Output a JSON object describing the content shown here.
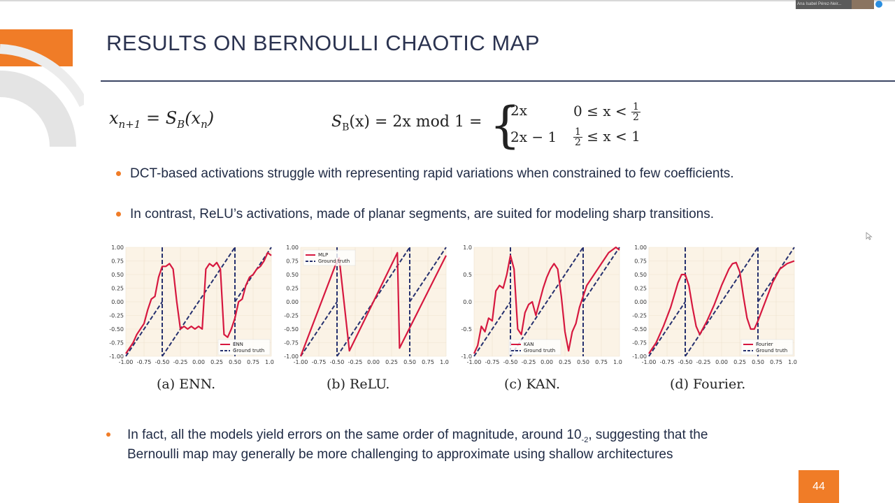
{
  "slide": {
    "title": "RESULTS ON BERNOULLI CHAOTIC MAP",
    "page_number": "44",
    "colors": {
      "accent": "#f07c27",
      "title": "#2b3350",
      "model": "#d6183f",
      "truth": "#25306e"
    }
  },
  "video": {
    "participant_name": "Ana Isabel Pérez-Neir..."
  },
  "equations": {
    "left": {
      "lhs": "x",
      "lhs_sub": "n+1",
      "eq": " = ",
      "rhs": "S",
      "rhs_sub": "B",
      "arg": "(x",
      "arg_sub": "n",
      "close": ")"
    },
    "right": {
      "lhs": "S",
      "lhs_sub": "B",
      "rhs": "(x) = 2x mod 1 =",
      "case1_expr": "2x",
      "case1_cond_pre": "0 ≤ x <",
      "case2_expr": "2x − 1",
      "case2_cond_post": "≤ x < 1",
      "frac_num": "1",
      "frac_den": "2"
    }
  },
  "bullets": [
    "DCT-based activations struggle with representing rapid variations when constrained to few coefficients.",
    "In contrast, ReLU’s activations, made of planar segments, are suited for modeling sharp transitions.",
    "In fact, all the models yield errors on the same order of magnitude, around 10",
    "Bernoulli map may generally be more challenging to approximate using shallow architectures"
  ],
  "bullet3_exponent": "-2",
  "bullet3_tail": ", suggesting that the",
  "chart_data": [
    {
      "type": "line",
      "caption": "(a) ENN.",
      "xlim": [
        -1,
        1
      ],
      "ylim": [
        -1,
        1
      ],
      "xticks": [
        "-1.00",
        "-0.75",
        "-0.50",
        "-0.25",
        "0.00",
        "0.25",
        "0.50",
        "0.75",
        "1.00"
      ],
      "yticks": [
        "1.00",
        "0.75",
        "0.50",
        "0.25",
        "0.00",
        "-0.25",
        "-0.50",
        "-0.75",
        "-1.00"
      ],
      "legend": [
        "ENN",
        "Ground truth"
      ],
      "legend_position": "bottom-right",
      "x": [
        -1,
        -0.95,
        -0.9,
        -0.85,
        -0.8,
        -0.75,
        -0.7,
        -0.65,
        -0.6,
        -0.55,
        -0.5,
        -0.45,
        -0.4,
        -0.35,
        -0.3,
        -0.25,
        -0.2,
        -0.15,
        -0.1,
        -0.05,
        0,
        0.05,
        0.1,
        0.15,
        0.2,
        0.25,
        0.3,
        0.35,
        0.4,
        0.45,
        0.5,
        0.55,
        0.6,
        0.65,
        0.7,
        0.75,
        0.8,
        0.85,
        0.9,
        0.95,
        1
      ],
      "y": [
        -0.95,
        -0.85,
        -0.75,
        -0.6,
        -0.5,
        -0.4,
        -0.15,
        0.05,
        0.1,
        0.45,
        0.65,
        0.65,
        0.7,
        0.6,
        0.0,
        -0.5,
        -0.45,
        -0.5,
        -0.45,
        -0.5,
        -0.45,
        -0.5,
        0.6,
        0.7,
        0.65,
        0.72,
        0.6,
        -0.6,
        -0.65,
        -0.5,
        -0.3,
        0.0,
        0.05,
        0.3,
        0.45,
        0.5,
        0.6,
        0.65,
        0.75,
        0.9,
        0.85
      ]
    },
    {
      "type": "line",
      "caption": "(b) ReLU.",
      "xlim": [
        -1,
        1
      ],
      "ylim": [
        -1,
        1
      ],
      "xticks": [
        "-1.00",
        "-0.75",
        "-0.50",
        "-0.25",
        "0.00",
        "0.25",
        "0.50",
        "0.75",
        "1.00"
      ],
      "yticks": [
        "1.00",
        "0.75",
        "0.50",
        "0.25",
        "0.00",
        "-0.25",
        "-0.50",
        "-0.75",
        "-1.00"
      ],
      "legend": [
        "MLP",
        "Ground truth"
      ],
      "legend_position": "top-left",
      "x": [
        -1,
        -0.5,
        -0.47,
        -0.33,
        0.33,
        0.36,
        1
      ],
      "y": [
        -1,
        0.75,
        0.8,
        -0.9,
        0.9,
        -0.85,
        0.85
      ]
    },
    {
      "type": "line",
      "caption": "(c) KAN.",
      "xlim": [
        -1,
        1
      ],
      "ylim": [
        -1,
        1
      ],
      "xticks": [
        "-1.00",
        "-0.75",
        "-0.50",
        "-0.25",
        "0.00",
        "0.25",
        "0.50",
        "0.75",
        "1.00"
      ],
      "yticks": [
        "1.0",
        "0.5",
        "0.0",
        "-0.5",
        "-1.0"
      ],
      "legend": [
        "KAN",
        "Ground truth"
      ],
      "legend_position": "bottom-left",
      "x": [
        -1,
        -0.95,
        -0.9,
        -0.85,
        -0.8,
        -0.75,
        -0.7,
        -0.65,
        -0.6,
        -0.55,
        -0.5,
        -0.45,
        -0.4,
        -0.35,
        -0.3,
        -0.25,
        -0.2,
        -0.15,
        -0.1,
        -0.05,
        0,
        0.05,
        0.1,
        0.15,
        0.2,
        0.25,
        0.3,
        0.35,
        0.4,
        0.45,
        0.5,
        0.55,
        0.6,
        0.65,
        0.7,
        0.75,
        0.8,
        0.85,
        0.9,
        0.95,
        1
      ],
      "y": [
        -0.95,
        -0.8,
        -0.45,
        -0.55,
        -0.3,
        -0.35,
        0.2,
        0.3,
        0.25,
        0.5,
        0.85,
        0.6,
        -0.5,
        -0.6,
        -0.2,
        -0.05,
        0.0,
        -0.25,
        0.0,
        0.25,
        0.45,
        0.6,
        0.7,
        0.6,
        0.1,
        -0.55,
        -0.9,
        -0.55,
        -0.4,
        -0.1,
        0.1,
        0.3,
        0.4,
        0.5,
        0.6,
        0.7,
        0.8,
        0.9,
        0.95,
        1.0,
        0.95
      ]
    },
    {
      "type": "line",
      "caption": "(d) Fourier.",
      "xlim": [
        -1,
        1
      ],
      "ylim": [
        -1,
        1
      ],
      "xticks": [
        "-1.00",
        "-0.75",
        "-0.50",
        "-0.25",
        "0.00",
        "0.25",
        "0.50",
        "0.75",
        "1.00"
      ],
      "yticks": [
        "1.00",
        "0.75",
        "0.50",
        "0.25",
        "0.00",
        "-0.25",
        "-0.50",
        "-0.75",
        "-1.00"
      ],
      "legend": [
        "Fourier",
        "Ground truth"
      ],
      "legend_position": "bottom-right",
      "x": [
        -1,
        -0.9,
        -0.8,
        -0.7,
        -0.6,
        -0.55,
        -0.5,
        -0.45,
        -0.4,
        -0.35,
        -0.3,
        -0.2,
        -0.1,
        0,
        0.1,
        0.15,
        0.2,
        0.25,
        0.3,
        0.35,
        0.4,
        0.45,
        0.5,
        0.6,
        0.7,
        0.8,
        0.9,
        1
      ],
      "y": [
        -0.95,
        -0.75,
        -0.45,
        -0.1,
        0.35,
        0.5,
        0.5,
        0.3,
        -0.1,
        -0.45,
        -0.6,
        -0.35,
        -0.05,
        0.3,
        0.6,
        0.7,
        0.72,
        0.55,
        0.1,
        -0.3,
        -0.5,
        -0.5,
        -0.35,
        0.0,
        0.35,
        0.6,
        0.7,
        0.75
      ]
    }
  ]
}
